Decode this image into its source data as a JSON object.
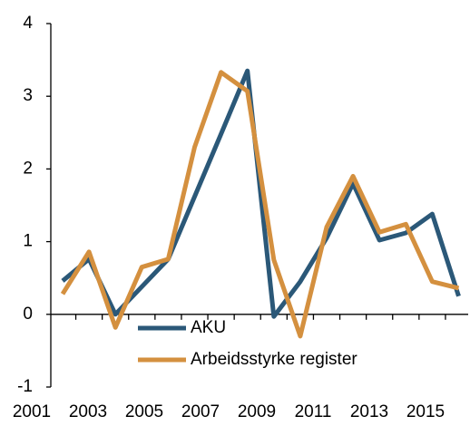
{
  "chart_data": {
    "type": "line",
    "categories": [
      "2001",
      null,
      "2003",
      null,
      "2005",
      null,
      "2007",
      null,
      "2009",
      null,
      "2011",
      null,
      "2013",
      null,
      "2015",
      null
    ],
    "series": [
      {
        "name": "AKU",
        "color": "#2b5878",
        "values": [
          0.46,
          0.76,
          0.0,
          0.38,
          0.76,
          1.62,
          2.48,
          3.35,
          -0.03,
          0.45,
          1.05,
          1.8,
          1.02,
          1.12,
          1.38,
          0.25
        ]
      },
      {
        "name": "Arbeidsstyrke register",
        "color": "#d4903f",
        "values": [
          0.28,
          0.86,
          -0.18,
          0.65,
          0.76,
          2.3,
          3.33,
          3.07,
          0.75,
          -0.3,
          1.2,
          1.9,
          1.13,
          1.24,
          0.45,
          0.36
        ]
      }
    ],
    "ylim": [
      -1,
      4
    ],
    "yticks": [
      -1,
      0,
      1,
      2,
      3,
      4
    ],
    "grid": false,
    "legend": "bottom"
  }
}
